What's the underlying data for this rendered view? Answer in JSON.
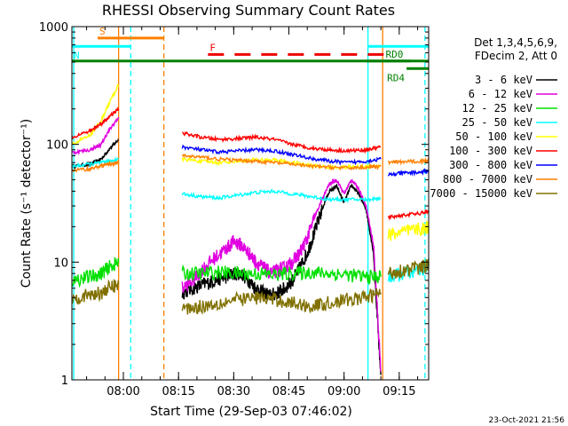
{
  "chart_data": {
    "type": "line",
    "title": "RHESSI Observing Summary Count Rates",
    "xlabel": "Start Time (29-Sep-03 07:46:02)",
    "ylabel": "Count Rate (s⁻¹ detector⁻¹)",
    "yscale": "log",
    "ylim": [
      1,
      1000
    ],
    "xlim_minutes": [
      0,
      97
    ],
    "y_ticks": [
      {
        "value": 1,
        "label": "1"
      },
      {
        "value": 10,
        "label": "10"
      },
      {
        "value": 100,
        "label": "100"
      },
      {
        "value": 1000,
        "label": "1000"
      }
    ],
    "x_ticks": [
      {
        "minutes": 14,
        "label": "08:00"
      },
      {
        "minutes": 29,
        "label": "08:15"
      },
      {
        "minutes": 44,
        "label": "08:30"
      },
      {
        "minutes": 59,
        "label": "08:45"
      },
      {
        "minutes": 74,
        "label": "09:00"
      },
      {
        "minutes": 89,
        "label": "09:15"
      }
    ],
    "legend_header": [
      "Det 1,3,4,5,6,9,",
      "FDecim 2, Att 0"
    ],
    "series": [
      {
        "name": "3 - 6 keV",
        "color": "#000000",
        "segments": [
          {
            "x": [
              0,
              5,
              8,
              10,
              12.7
            ],
            "y": [
              65,
              68,
              75,
              90,
              110
            ]
          },
          {
            "x": [
              30,
              33,
              36,
              39,
              42,
              44,
              46,
              48,
              50,
              52,
              54,
              56,
              58,
              60,
              62,
              64,
              66,
              68,
              70,
              72,
              74,
              76,
              78,
              80,
              82,
              84
            ],
            "y": [
              5.5,
              6,
              6.5,
              7,
              7.5,
              8,
              8,
              7,
              6,
              5.5,
              5.2,
              5.5,
              6,
              7,
              9,
              12,
              18,
              28,
              40,
              44,
              32,
              45,
              38,
              28,
              12,
              1.1
            ]
          }
        ]
      },
      {
        "name": "6 - 12 keV",
        "color": "#e000e0",
        "segments": [
          {
            "x": [
              0,
              5,
              8,
              10,
              12.7
            ],
            "y": [
              85,
              90,
              100,
              130,
              170
            ]
          },
          {
            "x": [
              30,
              33,
              36,
              39,
              42,
              44,
              46,
              48,
              50,
              52,
              54,
              56,
              58,
              60,
              62,
              64,
              66,
              68,
              70,
              72,
              74,
              76,
              78,
              80,
              82,
              84
            ],
            "y": [
              6,
              7,
              9,
              11,
              13,
              15,
              14,
              12,
              10,
              9,
              8,
              8.5,
              9,
              10,
              12,
              16,
              24,
              34,
              46,
              50,
              38,
              50,
              42,
              30,
              14,
              1.2
            ]
          }
        ]
      },
      {
        "name": "12 - 25 keV",
        "color": "#00e000",
        "segments": [
          {
            "x": [
              0,
              5,
              8,
              10,
              12.7
            ],
            "y": [
              7,
              7.5,
              8,
              9,
              10
            ]
          },
          {
            "x": [
              30,
              35,
              40,
              45,
              50,
              55,
              60,
              65,
              70,
              75,
              80,
              84
            ],
            "y": [
              8,
              8,
              8.2,
              8,
              8,
              7.8,
              8,
              8.2,
              8,
              7.8,
              7.5,
              7.5
            ]
          }
        ]
      },
      {
        "name": "25 - 50 keV",
        "color": "#00ffff",
        "segments": [
          {
            "x": [
              0,
              5,
              8,
              10,
              12.7
            ],
            "y": [
              65,
              68,
              70,
              72,
              75
            ]
          },
          {
            "x": [
              30,
              35,
              40,
              45,
              50,
              55,
              60,
              65,
              70,
              75,
              80,
              84
            ],
            "y": [
              38,
              36,
              35,
              37,
              39,
              40,
              38,
              36,
              34,
              34,
              34,
              35
            ]
          },
          {
            "x": [
              86,
              90,
              95,
              97
            ],
            "y": [
              7.5,
              8,
              8.5,
              9
            ]
          }
        ]
      },
      {
        "name": "50 - 100 keV",
        "color": "#ffff00",
        "segments": [
          {
            "x": [
              0,
              5,
              8,
              10,
              12.7
            ],
            "y": [
              100,
              120,
              160,
              220,
              320
            ]
          },
          {
            "x": [
              30,
              35,
              40,
              45,
              50,
              55,
              60,
              65,
              70,
              75,
              80,
              84
            ],
            "y": [
              75,
              72,
              70,
              72,
              74,
              74,
              70,
              66,
              64,
              64,
              65,
              66
            ]
          },
          {
            "x": [
              86,
              90,
              95,
              97
            ],
            "y": [
              17,
              18,
              19,
              20
            ]
          }
        ]
      },
      {
        "name": "100 - 300 keV",
        "color": "#ff0000",
        "segments": [
          {
            "x": [
              0,
              5,
              8,
              10,
              12.7
            ],
            "y": [
              115,
              130,
              150,
              170,
              200
            ]
          },
          {
            "x": [
              30,
              35,
              40,
              45,
              50,
              55,
              60,
              65,
              70,
              75,
              80,
              84
            ],
            "y": [
              125,
              115,
              110,
              112,
              115,
              110,
              100,
              93,
              90,
              88,
              90,
              95
            ]
          },
          {
            "x": [
              86,
              90,
              95,
              97
            ],
            "y": [
              24,
              25,
              26,
              27
            ]
          }
        ]
      },
      {
        "name": "300 - 800 keV",
        "color": "#0000ff",
        "segments": [
          {
            "x": [
              30,
              35,
              40,
              45,
              50,
              55,
              60,
              65,
              70,
              75,
              80,
              84
            ],
            "y": [
              95,
              90,
              86,
              88,
              90,
              88,
              82,
              76,
              72,
              70,
              72,
              75
            ]
          },
          {
            "x": [
              86,
              90,
              95,
              97
            ],
            "y": [
              55,
              57,
              58,
              60
            ]
          }
        ]
      },
      {
        "name": "800 - 7000 keV",
        "color": "#ff8000",
        "segments": [
          {
            "x": [
              0,
              5,
              8,
              10,
              12.7
            ],
            "y": [
              60,
              62,
              66,
              68,
              70
            ]
          },
          {
            "x": [
              30,
              35,
              40,
              45,
              50,
              55,
              60,
              65,
              70,
              75,
              80,
              84
            ],
            "y": [
              80,
              78,
              75,
              73,
              72,
              70,
              68,
              65,
              64,
              63,
              64,
              65
            ]
          },
          {
            "x": [
              86,
              90,
              95,
              97
            ],
            "y": [
              70,
              71,
              72,
              73
            ]
          }
        ]
      },
      {
        "name": "7000 - 15000 keV",
        "color": "#807000",
        "segments": [
          {
            "x": [
              0,
              5,
              8,
              10,
              12.7
            ],
            "y": [
              5,
              5.2,
              5.5,
              6,
              6.5
            ]
          },
          {
            "x": [
              30,
              35,
              40,
              45,
              50,
              55,
              60,
              65,
              70,
              75,
              80,
              84
            ],
            "y": [
              4,
              4.2,
              4.5,
              4.8,
              5,
              4.8,
              4.5,
              4.2,
              4.5,
              4.8,
              5,
              5.5
            ]
          },
          {
            "x": [
              86,
              90,
              95,
              97
            ],
            "y": [
              8,
              8.5,
              9,
              9.5
            ]
          }
        ]
      }
    ],
    "bars": [
      {
        "label": "S",
        "color": "#ff8000",
        "y": 800,
        "x0": 7,
        "x1": 25
      },
      {
        "label": "N",
        "color": "#00ffff",
        "y": 680,
        "x0": 0,
        "x1": 16
      },
      {
        "label": "",
        "color": "#00ffff",
        "y": 680,
        "x0": 80.5,
        "x1": 97
      },
      {
        "label": "F",
        "color": "#ee0000",
        "y": 580,
        "x0": 37,
        "x1": 86,
        "dashed": true
      },
      {
        "label": "",
        "color": "#008000",
        "y": 510,
        "x0": 0,
        "x1": 97
      },
      {
        "label": "RD0",
        "color": "#008000",
        "y": 510,
        "x0": 80,
        "x1": 92
      },
      {
        "label": "RD4",
        "color": "#008000",
        "y": 440,
        "x0": 91,
        "x1": 97
      }
    ],
    "vertical_lines": [
      {
        "x": 0.5,
        "color": "#00ffff",
        "dashed": false
      },
      {
        "x": 12.7,
        "color": "#ff8000",
        "dashed": false
      },
      {
        "x": 16,
        "color": "#00ffff",
        "dashed": true
      },
      {
        "x": 25,
        "color": "#ff8000",
        "dashed": true
      },
      {
        "x": 80.5,
        "color": "#00ffff",
        "dashed": false
      },
      {
        "x": 84.5,
        "color": "#ff8000",
        "dashed": false
      },
      {
        "x": 96,
        "color": "#00ffff",
        "dashed": true
      }
    ],
    "timestamp": "23-Oct-2021 21:56"
  }
}
